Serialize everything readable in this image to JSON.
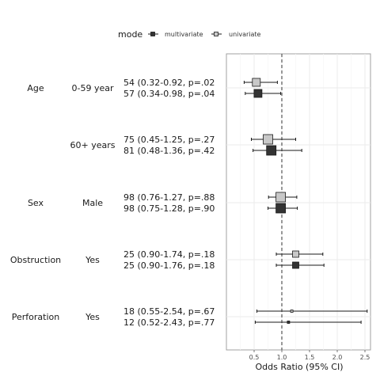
{
  "chart_data": {
    "type": "scatter",
    "subtype": "forest-plot",
    "xlabel": "Odds Ratio (95% CI)",
    "xlim": [
      0.0,
      2.6
    ],
    "x_ticks": [
      "0.5",
      "1.0",
      "1.5",
      "2.0",
      "2.5"
    ],
    "reference_line": 1.0,
    "grid": true,
    "legend": {
      "title": "mode",
      "position": "top",
      "entries": [
        {
          "name": "multivariate",
          "fill": "#333333"
        },
        {
          "name": "univariate",
          "fill": "#c8c8c8"
        }
      ]
    },
    "rows": [
      {
        "variable": "Age",
        "level": "0-59 year",
        "up_label": "54 (0.32-0.92, p=.02",
        "down_label": "57 (0.34-0.98, p=.04",
        "univariate": {
          "or": 0.54,
          "lo": 0.32,
          "hi": 0.92
        },
        "multivariate": {
          "or": 0.57,
          "lo": 0.34,
          "hi": 0.98
        }
      },
      {
        "variable": "",
        "level": "60+ years",
        "up_label": "75 (0.45-1.25, p=.27",
        "down_label": "81 (0.48-1.36, p=.42",
        "univariate": {
          "or": 0.75,
          "lo": 0.45,
          "hi": 1.25
        },
        "multivariate": {
          "or": 0.81,
          "lo": 0.48,
          "hi": 1.36
        }
      },
      {
        "variable": "Sex",
        "level": "Male",
        "up_label": "98 (0.76-1.27, p=.88",
        "down_label": "98 (0.75-1.28, p=.90",
        "univariate": {
          "or": 0.98,
          "lo": 0.76,
          "hi": 1.27
        },
        "multivariate": {
          "or": 0.98,
          "lo": 0.75,
          "hi": 1.28
        }
      },
      {
        "variable": "Obstruction",
        "level": "Yes",
        "up_label": "25 (0.90-1.74, p=.18",
        "down_label": "25 (0.90-1.76, p=.18",
        "univariate": {
          "or": 1.25,
          "lo": 0.9,
          "hi": 1.74
        },
        "multivariate": {
          "or": 1.25,
          "lo": 0.9,
          "hi": 1.76
        }
      },
      {
        "variable": "Perforation",
        "level": "Yes",
        "up_label": "18 (0.55-2.54, p=.67",
        "down_label": "12 (0.52-2.43, p=.77",
        "univariate": {
          "or": 1.18,
          "lo": 0.55,
          "hi": 2.54
        },
        "multivariate": {
          "or": 1.12,
          "lo": 0.52,
          "hi": 2.43
        }
      }
    ]
  }
}
